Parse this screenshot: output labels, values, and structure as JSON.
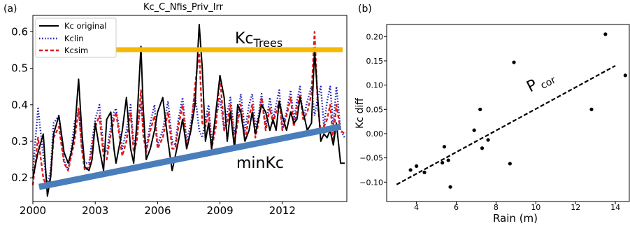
{
  "figure": {
    "panel_a_label": "(a)",
    "panel_b_label": "(b)"
  },
  "chart_data": [
    {
      "type": "line",
      "title": "Kc_C_Nfis_Priv_Irr",
      "xlabel": "",
      "ylabel": "",
      "xlim": [
        2000,
        2015.1
      ],
      "ylim": [
        0.135,
        0.645
      ],
      "xticks": [
        2000,
        2003,
        2006,
        2009,
        2012
      ],
      "yticks": [
        0.2,
        0.3,
        0.4,
        0.5,
        0.6
      ],
      "grid": false,
      "legend_position": "top-left",
      "series": [
        {
          "name": "Kc original",
          "color": "#000000",
          "style": "solid",
          "x": [
            2000.0,
            2000.25,
            2000.5,
            2000.7,
            2000.85,
            2001.0,
            2001.25,
            2001.5,
            2001.7,
            2001.85,
            2002.0,
            2002.2,
            2002.35,
            2002.5,
            2002.7,
            2002.85,
            2003.0,
            2003.2,
            2003.4,
            2003.55,
            2003.75,
            2003.9,
            2004.0,
            2004.3,
            2004.5,
            2004.7,
            2004.85,
            2005.0,
            2005.2,
            2005.3,
            2005.45,
            2005.65,
            2005.85,
            2006.0,
            2006.25,
            2006.5,
            2006.7,
            2006.85,
            2007.0,
            2007.2,
            2007.4,
            2007.6,
            2007.8,
            2008.0,
            2008.15,
            2008.3,
            2008.45,
            2008.6,
            2008.8,
            2009.0,
            2009.2,
            2009.35,
            2009.5,
            2009.7,
            2009.85,
            2010.0,
            2010.2,
            2010.4,
            2010.55,
            2010.7,
            2010.85,
            2011.0,
            2011.2,
            2011.4,
            2011.55,
            2011.7,
            2011.85,
            2012.0,
            2012.2,
            2012.4,
            2012.55,
            2012.7,
            2012.85,
            2013.0,
            2013.2,
            2013.4,
            2013.55,
            2013.7,
            2013.85,
            2014.0,
            2014.15,
            2014.3,
            2014.45,
            2014.6,
            2014.8,
            2015.0
          ],
          "y": [
            0.2,
            0.27,
            0.32,
            0.15,
            0.2,
            0.32,
            0.37,
            0.27,
            0.24,
            0.27,
            0.32,
            0.47,
            0.33,
            0.23,
            0.22,
            0.25,
            0.35,
            0.28,
            0.22,
            0.36,
            0.38,
            0.28,
            0.24,
            0.33,
            0.42,
            0.28,
            0.24,
            0.35,
            0.56,
            0.4,
            0.25,
            0.28,
            0.33,
            0.38,
            0.42,
            0.3,
            0.22,
            0.26,
            0.3,
            0.36,
            0.28,
            0.33,
            0.4,
            0.62,
            0.5,
            0.3,
            0.35,
            0.28,
            0.38,
            0.48,
            0.42,
            0.3,
            0.38,
            0.28,
            0.4,
            0.38,
            0.3,
            0.33,
            0.38,
            0.32,
            0.36,
            0.4,
            0.38,
            0.33,
            0.36,
            0.33,
            0.41,
            0.37,
            0.33,
            0.38,
            0.35,
            0.36,
            0.42,
            0.38,
            0.33,
            0.35,
            0.55,
            0.42,
            0.3,
            0.32,
            0.31,
            0.33,
            0.29,
            0.35,
            0.24,
            0.24
          ]
        },
        {
          "name": "Kclin",
          "color": "#1c1cb4",
          "style": "dotted",
          "x": [
            2000.0,
            2000.25,
            2000.5,
            2000.7,
            2000.85,
            2001.0,
            2001.25,
            2001.5,
            2001.7,
            2001.85,
            2002.0,
            2002.2,
            2002.35,
            2002.5,
            2002.7,
            2002.85,
            2003.0,
            2003.2,
            2003.4,
            2003.55,
            2003.75,
            2003.9,
            2004.0,
            2004.3,
            2004.5,
            2004.7,
            2004.85,
            2005.0,
            2005.2,
            2005.3,
            2005.45,
            2005.65,
            2005.85,
            2006.0,
            2006.25,
            2006.5,
            2006.7,
            2006.85,
            2007.0,
            2007.2,
            2007.4,
            2007.6,
            2007.8,
            2008.0,
            2008.15,
            2008.3,
            2008.45,
            2008.6,
            2008.8,
            2009.0,
            2009.2,
            2009.35,
            2009.5,
            2009.7,
            2009.85,
            2010.0,
            2010.2,
            2010.4,
            2010.55,
            2010.7,
            2010.85,
            2011.0,
            2011.2,
            2011.4,
            2011.55,
            2011.7,
            2011.85,
            2012.0,
            2012.2,
            2012.4,
            2012.55,
            2012.7,
            2012.85,
            2013.0,
            2013.2,
            2013.4,
            2013.55,
            2013.7,
            2013.85,
            2014.0,
            2014.15,
            2014.3,
            2014.45,
            2014.6,
            2014.8,
            2015.0
          ],
          "y": [
            0.22,
            0.39,
            0.26,
            0.18,
            0.22,
            0.35,
            0.37,
            0.25,
            0.22,
            0.28,
            0.35,
            0.39,
            0.29,
            0.24,
            0.24,
            0.3,
            0.36,
            0.4,
            0.28,
            0.27,
            0.34,
            0.38,
            0.39,
            0.28,
            0.33,
            0.4,
            0.29,
            0.32,
            0.4,
            0.35,
            0.28,
            0.35,
            0.4,
            0.29,
            0.33,
            0.41,
            0.3,
            0.29,
            0.36,
            0.42,
            0.3,
            0.35,
            0.43,
            0.33,
            0.31,
            0.36,
            0.4,
            0.3,
            0.36,
            0.42,
            0.33,
            0.38,
            0.42,
            0.32,
            0.36,
            0.43,
            0.33,
            0.4,
            0.43,
            0.34,
            0.37,
            0.43,
            0.34,
            0.42,
            0.36,
            0.4,
            0.44,
            0.34,
            0.38,
            0.44,
            0.36,
            0.41,
            0.45,
            0.36,
            0.41,
            0.45,
            0.37,
            0.42,
            0.45,
            0.34,
            0.41,
            0.45,
            0.34,
            0.45,
            0.33,
            0.31
          ]
        },
        {
          "name": "Kcsim",
          "color": "#e01b1b",
          "style": "dashed",
          "x": [
            2000.0,
            2000.25,
            2000.5,
            2000.7,
            2000.85,
            2001.0,
            2001.25,
            2001.5,
            2001.7,
            2001.85,
            2002.0,
            2002.2,
            2002.35,
            2002.5,
            2002.7,
            2002.85,
            2003.0,
            2003.2,
            2003.4,
            2003.55,
            2003.75,
            2003.9,
            2004.0,
            2004.3,
            2004.5,
            2004.7,
            2004.85,
            2005.0,
            2005.2,
            2005.3,
            2005.45,
            2005.65,
            2005.85,
            2006.0,
            2006.25,
            2006.5,
            2006.7,
            2006.85,
            2007.0,
            2007.2,
            2007.4,
            2007.6,
            2007.8,
            2008.0,
            2008.15,
            2008.3,
            2008.45,
            2008.6,
            2008.8,
            2009.0,
            2009.2,
            2009.35,
            2009.5,
            2009.7,
            2009.85,
            2010.0,
            2010.2,
            2010.4,
            2010.55,
            2010.7,
            2010.85,
            2011.0,
            2011.2,
            2011.4,
            2011.55,
            2011.7,
            2011.85,
            2012.0,
            2012.2,
            2012.4,
            2012.55,
            2012.7,
            2012.85,
            2013.0,
            2013.2,
            2013.4,
            2013.55,
            2013.7,
            2013.85,
            2014.0,
            2014.15,
            2014.3,
            2014.45,
            2014.6,
            2014.8,
            2015.0
          ],
          "y": [
            0.18,
            0.31,
            0.2,
            0.17,
            0.2,
            0.31,
            0.34,
            0.24,
            0.22,
            0.26,
            0.3,
            0.39,
            0.28,
            0.22,
            0.23,
            0.28,
            0.34,
            0.37,
            0.26,
            0.25,
            0.32,
            0.36,
            0.38,
            0.26,
            0.3,
            0.38,
            0.27,
            0.3,
            0.44,
            0.32,
            0.27,
            0.33,
            0.37,
            0.28,
            0.31,
            0.38,
            0.28,
            0.28,
            0.34,
            0.4,
            0.28,
            0.33,
            0.45,
            0.55,
            0.35,
            0.34,
            0.38,
            0.28,
            0.34,
            0.48,
            0.33,
            0.35,
            0.4,
            0.3,
            0.35,
            0.4,
            0.3,
            0.37,
            0.4,
            0.31,
            0.35,
            0.42,
            0.33,
            0.39,
            0.35,
            0.38,
            0.41,
            0.33,
            0.37,
            0.42,
            0.34,
            0.39,
            0.43,
            0.36,
            0.38,
            0.43,
            0.6,
            0.4,
            0.32,
            0.34,
            0.36,
            0.4,
            0.3,
            0.4,
            0.33,
            0.32
          ]
        }
      ],
      "annotations": [
        {
          "name": "kc-trees-line",
          "text_main": "Kc",
          "text_sub": "Trees",
          "color": "#f5b800",
          "x": [
            2004.0,
            2014.9
          ],
          "y": [
            0.551,
            0.551
          ]
        },
        {
          "name": "minkc-line",
          "text": "minKc",
          "color": "#4a7ebb",
          "x": [
            2000.3,
            2014.8
          ],
          "y": [
            0.175,
            0.34
          ]
        }
      ]
    },
    {
      "type": "scatter",
      "title": "",
      "xlabel": "Rain (m)",
      "ylabel": "Kc diff",
      "xlim": [
        2.5,
        14.7
      ],
      "ylim": [
        -0.14,
        0.225
      ],
      "xticks": [
        4,
        6,
        8,
        10,
        12,
        14
      ],
      "yticks": [
        -0.1,
        -0.05,
        0.0,
        0.05,
        0.1,
        0.15,
        0.2
      ],
      "ytick_labels": [
        "−0.10",
        "−0.05",
        "0.00",
        "0.05",
        "0.10",
        "0.15",
        "0.20"
      ],
      "grid": false,
      "points": {
        "x": [
          3.7,
          4.0,
          4.4,
          5.3,
          5.4,
          5.6,
          5.7,
          6.9,
          7.2,
          7.3,
          7.6,
          8.7,
          8.9,
          12.8,
          13.5,
          14.5
        ],
        "y": [
          -0.075,
          -0.067,
          -0.08,
          -0.06,
          -0.027,
          -0.055,
          -0.11,
          0.007,
          0.05,
          -0.03,
          -0.013,
          -0.062,
          0.147,
          0.05,
          0.205,
          0.12
        ]
      },
      "trend": {
        "x": [
          3.0,
          14.0
        ],
        "y": [
          -0.105,
          0.14
        ],
        "style": "dashed",
        "color": "#000000"
      },
      "annotation": {
        "text_main": "P",
        "text_sub": "cor"
      }
    }
  ]
}
